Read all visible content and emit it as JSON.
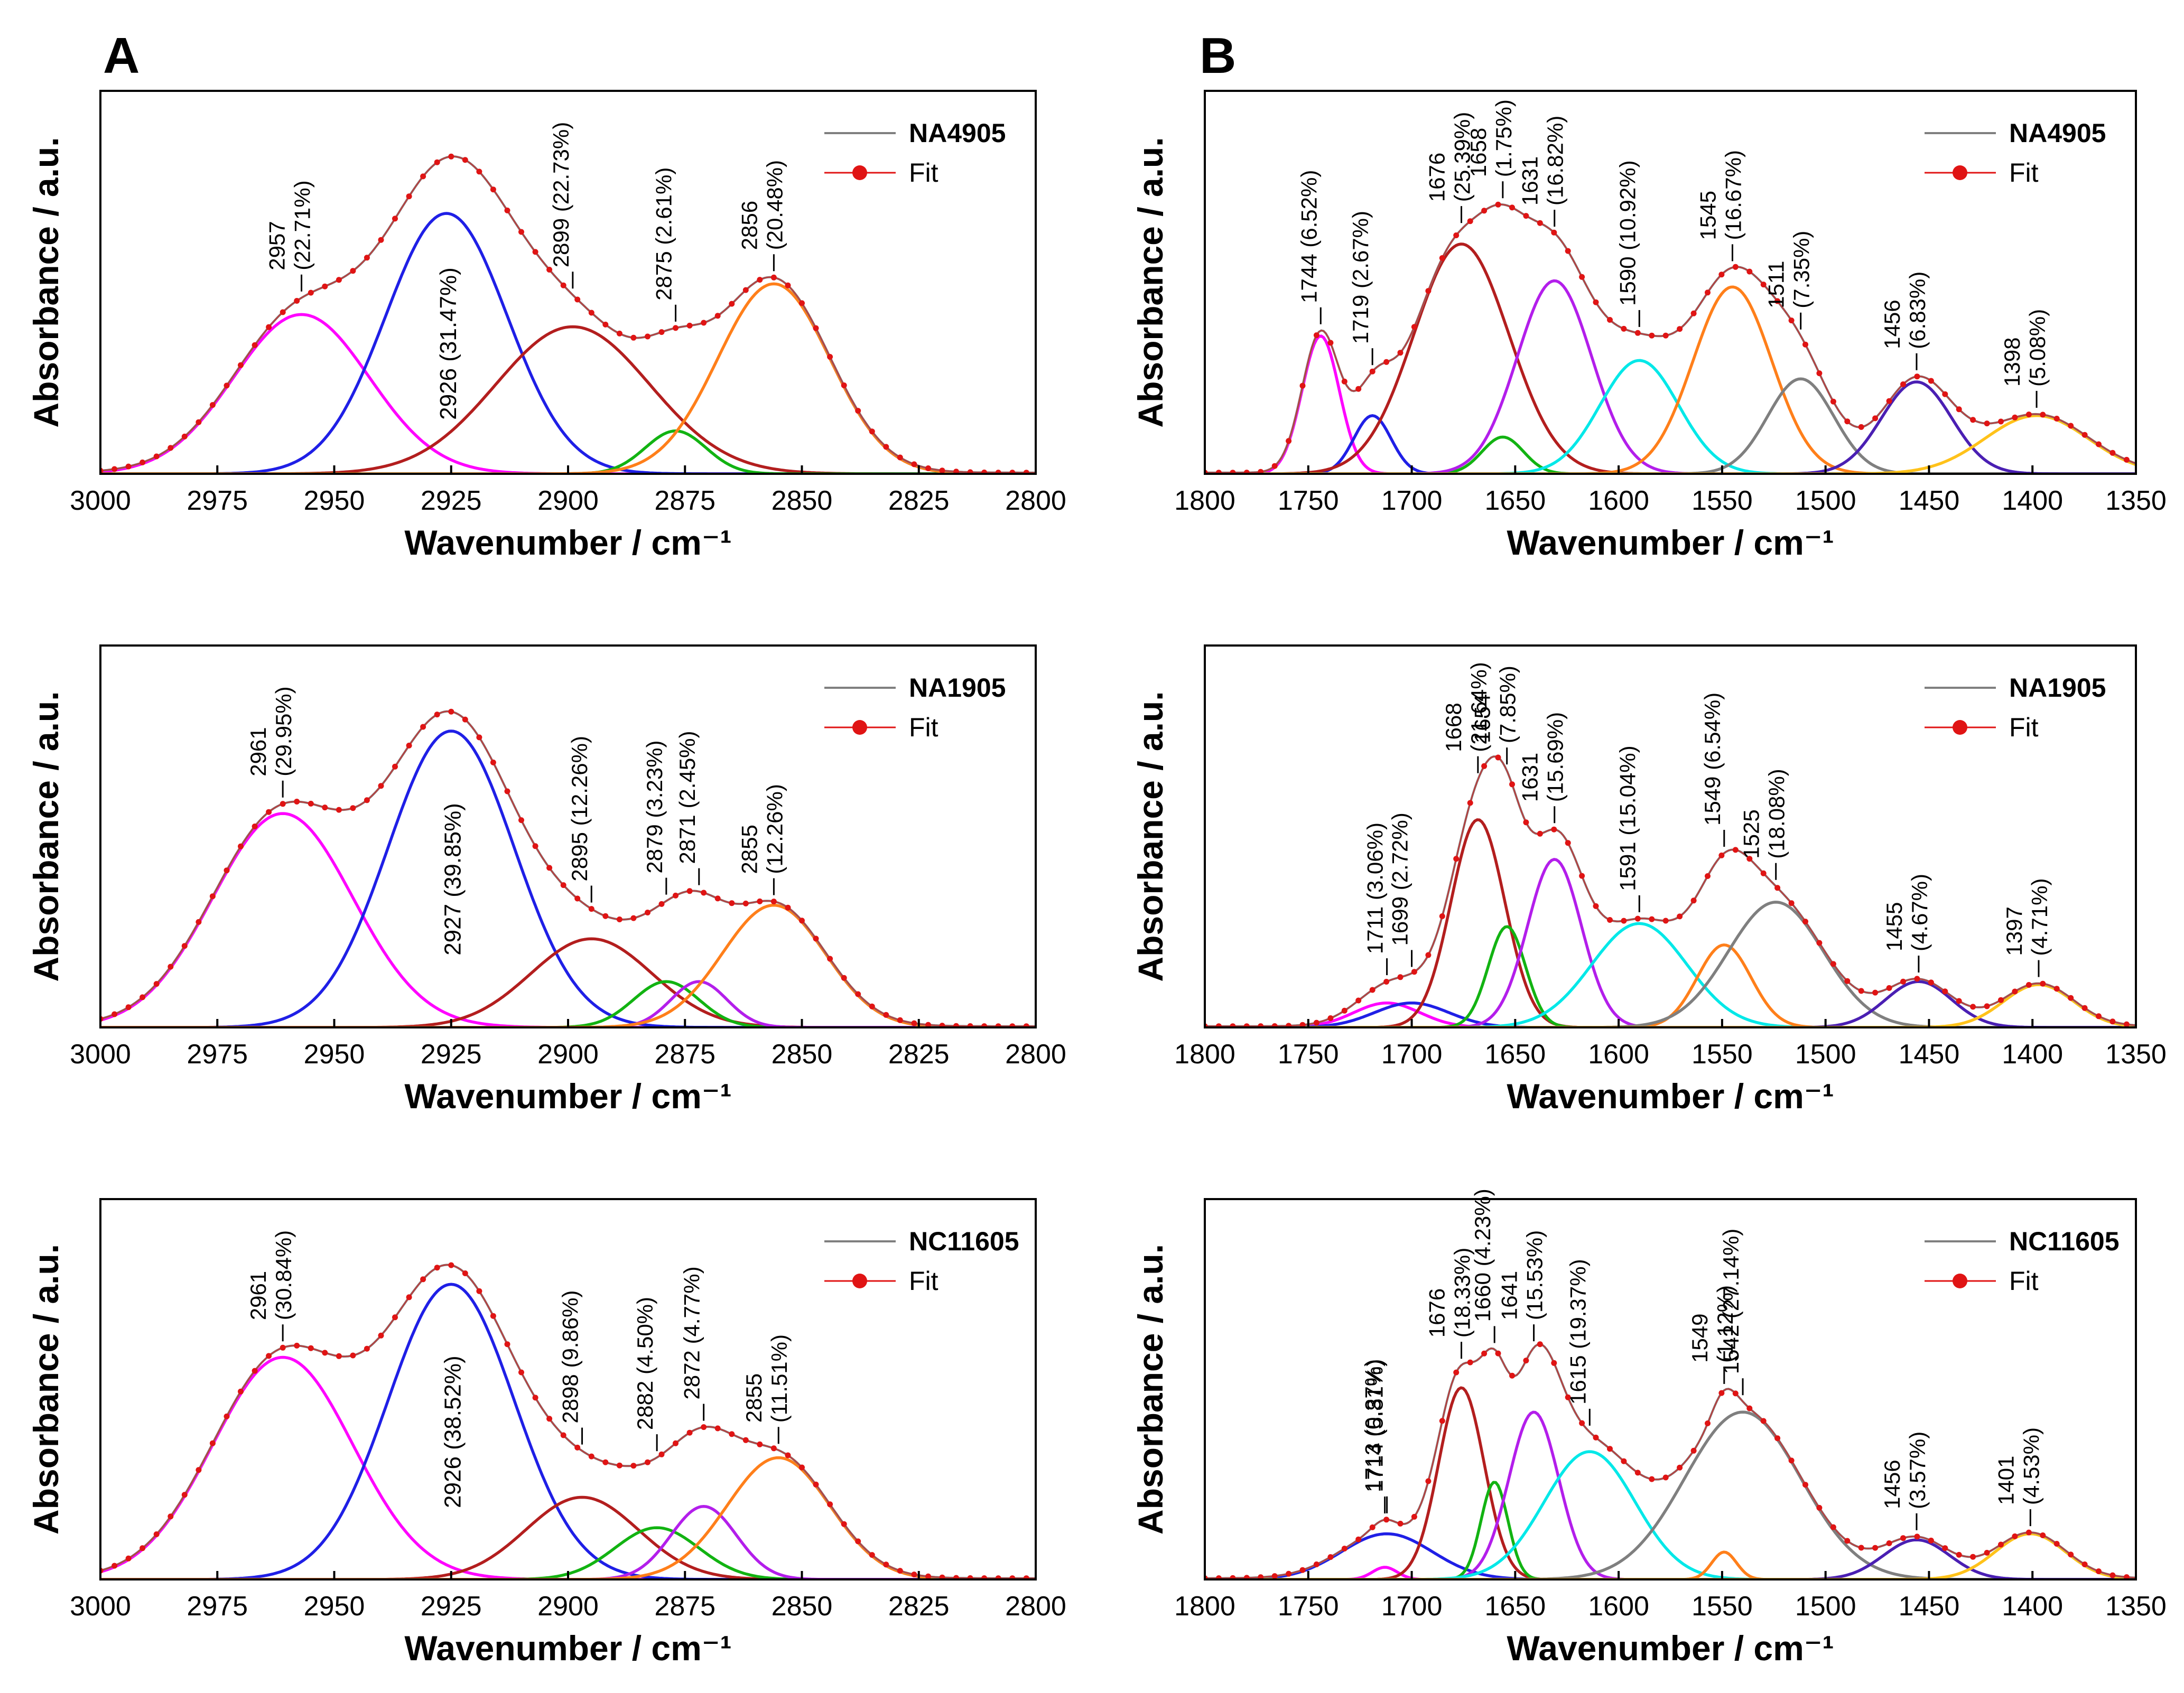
{
  "panel_letters": [
    "A",
    "B"
  ],
  "colors": {
    "magenta": "#ff00ff",
    "blue": "#1f1fe6",
    "darkred": "#b31e1e",
    "green": "#12b312",
    "orange": "#ff7f1a",
    "cyan": "#00e8e8",
    "gray": "#7f7f7f",
    "purple": "#b31eeb",
    "indigo": "#4a1fb3",
    "gold": "#ffc21a",
    "data_line": "#7f7f7f",
    "fit": "#e01414"
  },
  "chart_data": [
    {
      "id": "A1",
      "type": "line",
      "column": "A",
      "row": 0,
      "xlabel": "Wavenumber / cm⁻¹",
      "ylabel": "Absorbance / a.u.",
      "xlim": [
        3000,
        2800
      ],
      "xticks": [
        3000,
        2975,
        2950,
        2925,
        2900,
        2875,
        2850,
        2825,
        2800
      ],
      "ylim": [
        0,
        1.25
      ],
      "legend": {
        "sample": "NA4905",
        "fit": "Fit",
        "placement": "top-right"
      },
      "series": [
        {
          "name": "2957 (22.71%)",
          "color": "magenta",
          "center": 2957,
          "amp": 0.52,
          "width": 14.5,
          "label": [
            "2957",
            "(22.71%)"
          ]
        },
        {
          "name": "2926 (31.47%)",
          "color": "blue",
          "center": 2926,
          "amp": 0.85,
          "width": 13.0,
          "label": [
            "2926 (31.47%)"
          ],
          "label_below": true
        },
        {
          "name": "2899 (22.73%)",
          "color": "darkred",
          "center": 2899,
          "amp": 0.48,
          "width": 16.5,
          "label": [
            "2899 (22.73%)"
          ]
        },
        {
          "name": "2875 (2.61%)",
          "color": "green",
          "center": 2877,
          "amp": 0.14,
          "width": 6.5,
          "label": [
            "2875 (2.61%)"
          ]
        },
        {
          "name": "2856 (20.48%)",
          "color": "orange",
          "center": 2856,
          "amp": 0.62,
          "width": 12.0,
          "label": [
            "2856",
            "(20.48%)"
          ]
        }
      ]
    },
    {
      "id": "A2",
      "type": "line",
      "column": "A",
      "row": 1,
      "xlabel": "Wavenumber / cm⁻¹",
      "ylabel": "Absorbance / a.u.",
      "xlim": [
        3000,
        2800
      ],
      "xticks": [
        3000,
        2975,
        2950,
        2925,
        2900,
        2875,
        2850,
        2825,
        2800
      ],
      "ylim": [
        0,
        1.25
      ],
      "legend": {
        "sample": "NA1905",
        "fit": "Fit",
        "placement": "top-right"
      },
      "series": [
        {
          "name": "2961 (29.95%)",
          "color": "magenta",
          "center": 2961,
          "amp": 0.7,
          "width": 15.0,
          "label": [
            "2961",
            "(29.95%)"
          ]
        },
        {
          "name": "2927 (39.85%)",
          "color": "blue",
          "center": 2925,
          "amp": 0.97,
          "width": 13.5,
          "label": [
            "2927 (39.85%)"
          ],
          "label_below": true
        },
        {
          "name": "2895 (12.26%)",
          "color": "darkred",
          "center": 2895,
          "amp": 0.29,
          "width": 13.0,
          "label": [
            "2895 (12.26%)"
          ]
        },
        {
          "name": "2879 (3.23%)",
          "color": "green",
          "center": 2879,
          "amp": 0.15,
          "width": 7.0,
          "label": [
            "2879 (3.23%)"
          ]
        },
        {
          "name": "2871 (2.45%)",
          "color": "purple",
          "center": 2872,
          "amp": 0.15,
          "width": 6.0,
          "label": [
            "2871 (2.45%)"
          ]
        },
        {
          "name": "2855 (12.26%)",
          "color": "orange",
          "center": 2856,
          "amp": 0.4,
          "width": 11.0,
          "label": [
            "2855",
            "(12.26%)"
          ]
        }
      ]
    },
    {
      "id": "A3",
      "type": "line",
      "column": "A",
      "row": 2,
      "xlabel": "Wavenumber / cm⁻¹",
      "ylabel": "Absorbance / a.u.",
      "xlim": [
        3000,
        2800
      ],
      "xticks": [
        3000,
        2975,
        2950,
        2925,
        2900,
        2875,
        2850,
        2825,
        2800
      ],
      "ylim": [
        0,
        1.25
      ],
      "legend": {
        "sample": "NC11605",
        "fit": "Fit",
        "placement": "top-right"
      },
      "series": [
        {
          "name": "2961 (30.84%)",
          "color": "magenta",
          "center": 2961,
          "amp": 0.73,
          "width": 15.0,
          "label": [
            "2961",
            "(30.84%)"
          ]
        },
        {
          "name": "2926 (38.52%)",
          "color": "blue",
          "center": 2925,
          "amp": 0.97,
          "width": 13.5,
          "label": [
            "2926 (38.52%)"
          ],
          "label_below": true
        },
        {
          "name": "2898 (9.86%)",
          "color": "darkred",
          "center": 2897,
          "amp": 0.27,
          "width": 12.0,
          "label": [
            "2898 (9.86%)"
          ]
        },
        {
          "name": "2882 (4.50%)",
          "color": "green",
          "center": 2881,
          "amp": 0.17,
          "width": 9.0,
          "label": [
            "2882 (4.50%)"
          ]
        },
        {
          "name": "2872 (4.77%)",
          "color": "purple",
          "center": 2871,
          "amp": 0.24,
          "width": 7.0,
          "label": [
            "2872 (4.77%)"
          ]
        },
        {
          "name": "2855 (11.51%)",
          "color": "orange",
          "center": 2855,
          "amp": 0.4,
          "width": 11.0,
          "label": [
            "2855",
            "(11.51%)"
          ]
        }
      ]
    },
    {
      "id": "B1",
      "type": "line",
      "column": "B",
      "row": 0,
      "xlabel": "Wavenumber / cm⁻¹",
      "ylabel": "Absorbance / a.u.",
      "xlim": [
        1800,
        1350
      ],
      "xticks": [
        1800,
        1750,
        1700,
        1650,
        1600,
        1550,
        1500,
        1450,
        1400,
        1350
      ],
      "ylim": [
        0,
        1.25
      ],
      "legend": {
        "sample": "NA4905",
        "fit": "Fit",
        "placement": "top-right"
      },
      "series": [
        {
          "name": "1744 (6.52%)",
          "color": "magenta",
          "center": 1744,
          "amp": 0.45,
          "width": 9.0,
          "label": [
            "1744 (6.52%)"
          ]
        },
        {
          "name": "1719 (2.67%)",
          "color": "blue",
          "center": 1719,
          "amp": 0.19,
          "width": 9.0,
          "label": [
            "1719 (2.67%)"
          ]
        },
        {
          "name": "1676 (25.39%)",
          "color": "darkred",
          "center": 1676,
          "amp": 0.75,
          "width": 23.0,
          "label": [
            "1676",
            "(25.39%)"
          ]
        },
        {
          "name": "1658 (1.75%)",
          "color": "green",
          "center": 1656,
          "amp": 0.12,
          "width": 10.0,
          "label": [
            "1658",
            "(1.75%)"
          ]
        },
        {
          "name": "1631 (16.82%)",
          "color": "purple",
          "center": 1631,
          "amp": 0.63,
          "width": 18.0,
          "label": [
            "1631",
            "(16.82%)"
          ]
        },
        {
          "name": "1590 (10.92%)",
          "color": "cyan",
          "center": 1590,
          "amp": 0.37,
          "width": 19.0,
          "label": [
            "1590 (10.92%)"
          ]
        },
        {
          "name": "1545 (16.67%)",
          "color": "orange",
          "center": 1545,
          "amp": 0.61,
          "width": 19.0,
          "label": [
            "1545",
            "(16.67%)"
          ]
        },
        {
          "name": "1511 (7.35%)",
          "color": "gray",
          "center": 1512,
          "amp": 0.31,
          "width": 16.0,
          "label": [
            "1511",
            "(7.35%)"
          ]
        },
        {
          "name": "1456 (6.83%)",
          "color": "indigo",
          "center": 1456,
          "amp": 0.3,
          "width": 17.0,
          "label": [
            "1456",
            "(6.83%)"
          ]
        },
        {
          "name": "1398 (5.08%)",
          "color": "gold",
          "center": 1398,
          "amp": 0.19,
          "width": 25.0,
          "label": [
            "1398",
            "(5.08%)"
          ]
        }
      ]
    },
    {
      "id": "B2",
      "type": "line",
      "column": "B",
      "row": 1,
      "xlabel": "Wavenumber / cm⁻¹",
      "ylabel": "Absorbance / a.u.",
      "xlim": [
        1800,
        1350
      ],
      "xticks": [
        1800,
        1750,
        1700,
        1650,
        1600,
        1550,
        1500,
        1450,
        1400,
        1350
      ],
      "ylim": [
        0,
        1.25
      ],
      "legend": {
        "sample": "NA1905",
        "fit": "Fit",
        "placement": "top-right"
      },
      "series": [
        {
          "name": "1711 (3.06%)",
          "color": "magenta",
          "center": 1712,
          "amp": 0.08,
          "width": 16.0,
          "label": [
            "1711 (3.06%)"
          ]
        },
        {
          "name": "1699 (2.72%)",
          "color": "blue",
          "center": 1700,
          "amp": 0.08,
          "width": 18.0,
          "label": [
            "1699 (2.72%)"
          ]
        },
        {
          "name": "1668 (21.64%)",
          "color": "darkred",
          "center": 1668,
          "amp": 0.68,
          "width": 13.0,
          "label": [
            "1668",
            "(21.64%)"
          ]
        },
        {
          "name": "1654 (7.85%)",
          "color": "green",
          "center": 1654,
          "amp": 0.33,
          "width": 9.0,
          "label": [
            "1654",
            "(7.85%)"
          ]
        },
        {
          "name": "1631 (15.69%)",
          "color": "purple",
          "center": 1631,
          "amp": 0.55,
          "width": 13.0,
          "label": [
            "1631",
            "(15.69%)"
          ]
        },
        {
          "name": "1591 (15.04%)",
          "color": "cyan",
          "center": 1590,
          "amp": 0.34,
          "width": 23.0,
          "label": [
            "1591 (15.04%)"
          ]
        },
        {
          "name": "1549 (6.54%)",
          "color": "orange",
          "center": 1549,
          "amp": 0.27,
          "width": 13.0,
          "label": [
            "1549 (6.54%)"
          ]
        },
        {
          "name": "1525 (18.08%)",
          "color": "gray",
          "center": 1524,
          "amp": 0.41,
          "width": 23.0,
          "label": [
            "1525",
            "(18.08%)"
          ]
        },
        {
          "name": "1455 (4.67%)",
          "color": "indigo",
          "center": 1455,
          "amp": 0.15,
          "width": 16.0,
          "label": [
            "1455",
            "(4.67%)"
          ]
        },
        {
          "name": "1397 (4.71%)",
          "color": "gold",
          "center": 1397,
          "amp": 0.14,
          "width": 17.0,
          "label": [
            "1397",
            "(4.71%)"
          ]
        }
      ]
    },
    {
      "id": "B3",
      "type": "line",
      "column": "B",
      "row": 2,
      "xlabel": "Wavenumber / cm⁻¹",
      "ylabel": "Absorbance / a.u.",
      "xlim": [
        1800,
        1350
      ],
      "xticks": [
        1800,
        1750,
        1700,
        1650,
        1600,
        1550,
        1500,
        1450,
        1400,
        1350
      ],
      "ylim": [
        0,
        1.25
      ],
      "legend": {
        "sample": "NC11605",
        "fit": "Fit",
        "placement": "top-right"
      },
      "series": [
        {
          "name": "1714 (5.81%)",
          "color": "blue",
          "center": 1712,
          "amp": 0.15,
          "width": 22.0,
          "label": [
            "1714 (5.81%)"
          ]
        },
        {
          "name": "1713 (0.37%)",
          "color": "magenta",
          "center": 1713,
          "amp": 0.04,
          "width": 6.0,
          "label": [
            "1713 (0.37%)"
          ]
        },
        {
          "name": "1676 (18.33%)",
          "color": "darkred",
          "center": 1676,
          "amp": 0.63,
          "width": 11.0,
          "label": [
            "1676",
            "(18.33%)"
          ]
        },
        {
          "name": "1660 (4.23%)",
          "color": "green",
          "center": 1660,
          "amp": 0.32,
          "width": 6.5,
          "label": [
            "1660 (4.23%)"
          ]
        },
        {
          "name": "1641 (15.53%)",
          "color": "purple",
          "center": 1641,
          "amp": 0.55,
          "width": 12.0,
          "label": [
            "1641",
            "(15.53%)"
          ]
        },
        {
          "name": "1615 (19.37%)",
          "color": "cyan",
          "center": 1614,
          "amp": 0.42,
          "width": 22.0,
          "label": [
            "1615 (19.37%)"
          ]
        },
        {
          "name": "1549 (1.12%)",
          "color": "orange",
          "center": 1549,
          "amp": 0.09,
          "width": 6.0,
          "label": [
            "1549",
            "(1.12%)"
          ]
        },
        {
          "name": "1542 (27.14%)",
          "color": "gray",
          "center": 1540,
          "amp": 0.55,
          "width": 28.0,
          "label": [
            "1542 (27.14%)"
          ]
        },
        {
          "name": "1456 (3.57%)",
          "color": "indigo",
          "center": 1456,
          "amp": 0.13,
          "width": 16.0,
          "label": [
            "1456",
            "(3.57%)"
          ]
        },
        {
          "name": "1401 (4.53%)",
          "color": "gold",
          "center": 1401,
          "amp": 0.15,
          "width": 17.0,
          "label": [
            "1401",
            "(4.53%)"
          ]
        }
      ]
    }
  ]
}
